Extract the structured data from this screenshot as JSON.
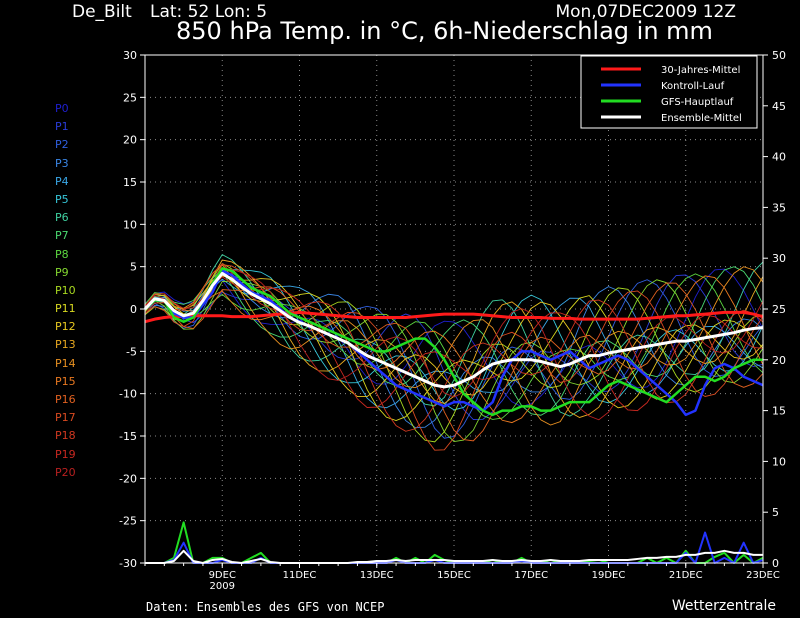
{
  "header": {
    "station": "De_Bilt",
    "latlon": "Lat: 52 Lon: 5",
    "datetime": "Mon,07DEC2009 12Z",
    "title": "850 hPa Temp. in °C, 6h-Niederschlag in mm"
  },
  "members": [
    {
      "label": "P0",
      "color": "#1f1fd0"
    },
    {
      "label": "P1",
      "color": "#2a3cd8"
    },
    {
      "label": "P2",
      "color": "#2f5fe0"
    },
    {
      "label": "P3",
      "color": "#3a86e6"
    },
    {
      "label": "P4",
      "color": "#3aa8e8"
    },
    {
      "label": "P5",
      "color": "#36c6d8"
    },
    {
      "label": "P6",
      "color": "#3fd0a0"
    },
    {
      "label": "P7",
      "color": "#4ad870"
    },
    {
      "label": "P8",
      "color": "#5cd840"
    },
    {
      "label": "P9",
      "color": "#84d830"
    },
    {
      "label": "P10",
      "color": "#a8d820"
    },
    {
      "label": "P11",
      "color": "#d8d820"
    },
    {
      "label": "P12",
      "color": "#e8c820"
    },
    {
      "label": "P13",
      "color": "#e8a820"
    },
    {
      "label": "P14",
      "color": "#e89020"
    },
    {
      "label": "P15",
      "color": "#e87820"
    },
    {
      "label": "P16",
      "color": "#e06020"
    },
    {
      "label": "P17",
      "color": "#d84a20"
    },
    {
      "label": "P18",
      "color": "#d03820"
    },
    {
      "label": "P19",
      "color": "#c82820"
    },
    {
      "label": "P20",
      "color": "#b82020"
    }
  ],
  "footer": {
    "left": "Daten: Ensembles des GFS von NCEP",
    "right": "Wetterzentrale"
  },
  "chart_data": {
    "type": "line",
    "ylabel_left": "",
    "ylabel_right": "",
    "ylim_left": [
      -30,
      30
    ],
    "ylim_right": [
      0,
      50
    ],
    "yticks_left": [
      30,
      25,
      20,
      15,
      10,
      5,
      0,
      -5,
      -10,
      -15,
      -20,
      -25,
      -30
    ],
    "yticks_right": [
      50,
      45,
      40,
      35,
      30,
      25,
      20,
      15,
      10,
      5,
      0
    ],
    "xlim": [
      0,
      64
    ],
    "x_tick_labels": [
      {
        "x": 8,
        "label": "9DEC",
        "sub": "2009"
      },
      {
        "x": 16,
        "label": "11DEC",
        "sub": ""
      },
      {
        "x": 24,
        "label": "13DEC",
        "sub": ""
      },
      {
        "x": 32,
        "label": "15DEC",
        "sub": ""
      },
      {
        "x": 40,
        "label": "17DEC",
        "sub": ""
      },
      {
        "x": 48,
        "label": "19DEC",
        "sub": ""
      },
      {
        "x": 56,
        "label": "21DEC",
        "sub": ""
      },
      {
        "x": 64,
        "label": "23DEC",
        "sub": ""
      }
    ],
    "grid": true,
    "legend_placement": "top-right",
    "legend": [
      {
        "label": "30-Jahres-Mittel",
        "color": "#ff1a1a"
      },
      {
        "label": "Kontroll-Lauf",
        "color": "#2233ff"
      },
      {
        "label": "GFS-Hauptlauf",
        "color": "#22dd22"
      },
      {
        "label": "Ensemble-Mittel",
        "color": "#ffffff"
      }
    ],
    "temp_series": [
      {
        "name": "30-Jahres-Mittel",
        "color": "#ff1a1a",
        "width": 3,
        "values": [
          -1.5,
          -1.2,
          -1.0,
          -0.9,
          -0.9,
          -0.8,
          -0.8,
          -0.8,
          -0.8,
          -0.9,
          -0.9,
          -0.9,
          -0.8,
          -0.7,
          -0.6,
          -0.5,
          -0.4,
          -0.5,
          -0.6,
          -0.7,
          -0.8,
          -0.9,
          -1.0,
          -1.0,
          -1.0,
          -1.0,
          -1.0,
          -1.0,
          -0.9,
          -0.8,
          -0.7,
          -0.6,
          -0.6,
          -0.6,
          -0.6,
          -0.7,
          -0.8,
          -0.9,
          -1.0,
          -1.0,
          -1.0,
          -1.0,
          -1.1,
          -1.1,
          -1.1,
          -1.2,
          -1.2,
          -1.2,
          -1.2,
          -1.2,
          -1.2,
          -1.2,
          -1.1,
          -1.0,
          -0.9,
          -0.8,
          -0.8,
          -0.7,
          -0.6,
          -0.5,
          -0.4,
          -0.4,
          -0.4,
          -0.6,
          -0.9
        ]
      },
      {
        "name": "Kontroll-Lauf",
        "color": "#2233ff",
        "width": 2.5,
        "values": [
          0,
          1,
          1,
          -0.5,
          -1,
          -1,
          0.5,
          2,
          4.5,
          4,
          3,
          2,
          1.5,
          1,
          0,
          -1,
          -1.5,
          -2,
          -2.5,
          -3,
          -3.5,
          -4,
          -5,
          -6,
          -7,
          -8,
          -9,
          -9.5,
          -10,
          -10.5,
          -11,
          -11.5,
          -11,
          -11,
          -11.5,
          -12,
          -11,
          -8,
          -6,
          -5,
          -5,
          -5.5,
          -6,
          -5.5,
          -5,
          -6,
          -7,
          -6.5,
          -6,
          -5.5,
          -6,
          -7,
          -8,
          -9,
          -10,
          -11,
          -12.5,
          -12,
          -9,
          -7,
          -6.5,
          -7,
          -8,
          -8.5,
          -9
        ]
      },
      {
        "name": "GFS-Hauptlauf",
        "color": "#22dd22",
        "width": 2.5,
        "values": [
          0,
          1,
          1,
          -1,
          -1.5,
          -1,
          1,
          3,
          4.8,
          4.5,
          3.5,
          2.5,
          2,
          1.5,
          0.5,
          -0.5,
          -1,
          -1.5,
          -2,
          -2.5,
          -3,
          -3.5,
          -4,
          -4.5,
          -5,
          -5,
          -4.5,
          -4,
          -3.5,
          -3.5,
          -4.5,
          -6,
          -8,
          -10,
          -11,
          -12,
          -12.5,
          -12,
          -12,
          -11.5,
          -11.5,
          -12,
          -12,
          -11.5,
          -11,
          -11,
          -11,
          -10,
          -9,
          -8.5,
          -9,
          -9.5,
          -10,
          -10.5,
          -11,
          -10,
          -9,
          -8,
          -8,
          -8.5,
          -8,
          -7,
          -6.5,
          -6,
          -6
        ]
      },
      {
        "name": "Ensemble-Mittel",
        "color": "#ffffff",
        "width": 3,
        "values": [
          0,
          1.2,
          1,
          -0.2,
          -0.8,
          -0.5,
          1,
          2.8,
          4.2,
          3.5,
          2.6,
          1.8,
          1.2,
          0.6,
          -0.2,
          -1,
          -1.6,
          -2,
          -2.5,
          -3,
          -3.5,
          -4,
          -4.8,
          -5.5,
          -6,
          -6.5,
          -7,
          -7.5,
          -8,
          -8.5,
          -9,
          -9.2,
          -9,
          -8.5,
          -8,
          -7.2,
          -6.5,
          -6.2,
          -6,
          -6,
          -6,
          -6.2,
          -6.5,
          -6.8,
          -6.5,
          -6,
          -5.5,
          -5.5,
          -5.2,
          -5,
          -4.8,
          -4.6,
          -4.4,
          -4.2,
          -4,
          -3.8,
          -3.8,
          -3.6,
          -3.4,
          -3.2,
          -3,
          -2.8,
          -2.5,
          -2.3,
          -2.2
        ]
      }
    ],
    "precip_series": [
      {
        "name": "GFS-Hauptlauf",
        "color": "#22dd22",
        "values": [
          0,
          0,
          0,
          0.5,
          4,
          0,
          0,
          0.5,
          0.5,
          0,
          0,
          0.5,
          1,
          0,
          0,
          0,
          0,
          0,
          0,
          0,
          0,
          0,
          0,
          0,
          0.2,
          0,
          0.5,
          0,
          0.5,
          0,
          0.8,
          0.3,
          0,
          0,
          0.2,
          0,
          0.3,
          0,
          0,
          0.5,
          0,
          0,
          0.3,
          0,
          0,
          0,
          0.2,
          0.3,
          0,
          0,
          0,
          0,
          0.5,
          0,
          0.5,
          0,
          1.2,
          0,
          0,
          0.6,
          1,
          0,
          0.8,
          0,
          0.5
        ]
      },
      {
        "name": "Kontroll-Lauf",
        "color": "#2233ff",
        "values": [
          0,
          0,
          0,
          0.3,
          2,
          0,
          0,
          0,
          0.3,
          0,
          0,
          0,
          0.5,
          0,
          0,
          0,
          0,
          0,
          0,
          0,
          0,
          0,
          0,
          0,
          0,
          0,
          0.3,
          0,
          0,
          0,
          0.3,
          0,
          0,
          0,
          0,
          0,
          0,
          0,
          0,
          0.2,
          0,
          0,
          0,
          0,
          0,
          0,
          0,
          0,
          0,
          0,
          0,
          0,
          0,
          0,
          0,
          0,
          1,
          0,
          3,
          0,
          0.5,
          0,
          2,
          0,
          0.3
        ]
      },
      {
        "name": "Ensemble-Mittel",
        "color": "#ffffff",
        "values": [
          0,
          0,
          0,
          0.2,
          1.2,
          0.2,
          0,
          0.3,
          0.4,
          0.1,
          0,
          0.2,
          0.4,
          0.1,
          0,
          0,
          0,
          0,
          0,
          0,
          0,
          0,
          0.1,
          0.1,
          0.2,
          0.2,
          0.3,
          0.2,
          0.3,
          0.3,
          0.3,
          0.3,
          0.2,
          0.2,
          0.2,
          0.2,
          0.3,
          0.2,
          0.2,
          0.3,
          0.2,
          0.2,
          0.3,
          0.2,
          0.2,
          0.2,
          0.3,
          0.3,
          0.3,
          0.3,
          0.3,
          0.4,
          0.5,
          0.5,
          0.6,
          0.6,
          0.8,
          0.8,
          1,
          1,
          1.2,
          1,
          1,
          0.8,
          0.8
        ]
      }
    ]
  }
}
